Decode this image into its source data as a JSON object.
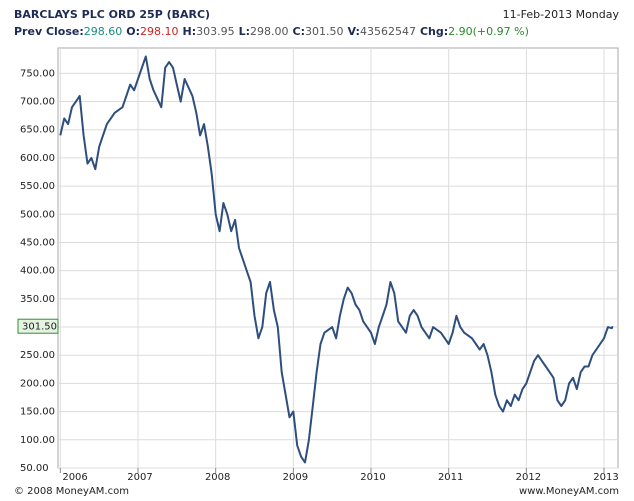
{
  "header": {
    "title": "BARCLAYS PLC ORD 25P (BARC)",
    "date": "11-Feb-2013 Monday",
    "fields": [
      {
        "label": "Prev Close:",
        "value": "298.60",
        "color": "#1a8a7a"
      },
      {
        "label": "O:",
        "value": "298.10",
        "color": "#cc2222"
      },
      {
        "label": "H:",
        "value": "303.95",
        "color": "#555555"
      },
      {
        "label": "L:",
        "value": "298.00",
        "color": "#555555"
      },
      {
        "label": "C:",
        "value": "301.50",
        "color": "#555555"
      },
      {
        "label": "V:",
        "value": "43562547",
        "color": "#555555"
      },
      {
        "label": "Chg:",
        "value": "2.90(+0.97 %)",
        "color": "#2a8a2a"
      }
    ]
  },
  "chart_data": {
    "type": "line",
    "x": [
      2006.0,
      2006.05,
      2006.1,
      2006.15,
      2006.2,
      2006.25,
      2006.3,
      2006.35,
      2006.4,
      2006.45,
      2006.5,
      2006.55,
      2006.6,
      2006.7,
      2006.8,
      2006.9,
      2006.95,
      2007.0,
      2007.05,
      2007.1,
      2007.15,
      2007.2,
      2007.3,
      2007.35,
      2007.4,
      2007.45,
      2007.5,
      2007.55,
      2007.6,
      2007.7,
      2007.75,
      2007.8,
      2007.85,
      2007.9,
      2007.95,
      2008.0,
      2008.05,
      2008.1,
      2008.15,
      2008.2,
      2008.25,
      2008.3,
      2008.35,
      2008.4,
      2008.45,
      2008.5,
      2008.55,
      2008.6,
      2008.65,
      2008.7,
      2008.75,
      2008.8,
      2008.85,
      2008.9,
      2008.95,
      2009.0,
      2009.05,
      2009.1,
      2009.15,
      2009.2,
      2009.25,
      2009.3,
      2009.35,
      2009.4,
      2009.5,
      2009.55,
      2009.6,
      2009.65,
      2009.7,
      2009.75,
      2009.8,
      2009.85,
      2009.9,
      2010.0,
      2010.05,
      2010.1,
      2010.15,
      2010.2,
      2010.25,
      2010.3,
      2010.35,
      2010.4,
      2010.45,
      2010.5,
      2010.55,
      2010.6,
      2010.65,
      2010.7,
      2010.75,
      2010.8,
      2010.9,
      2011.0,
      2011.05,
      2011.1,
      2011.15,
      2011.2,
      2011.3,
      2011.35,
      2011.4,
      2011.45,
      2011.5,
      2011.55,
      2011.6,
      2011.65,
      2011.7,
      2011.75,
      2011.8,
      2011.85,
      2011.9,
      2011.95,
      2012.0,
      2012.05,
      2012.1,
      2012.15,
      2012.2,
      2012.25,
      2012.3,
      2012.35,
      2012.4,
      2012.45,
      2012.5,
      2012.55,
      2012.6,
      2012.65,
      2012.7,
      2012.75,
      2012.8,
      2012.85,
      2012.9,
      2012.95,
      2013.0,
      2013.05,
      2013.1,
      2013.11
    ],
    "series": [
      {
        "color": "#2e4e7e",
        "values": [
          640,
          670,
          660,
          690,
          700,
          710,
          640,
          590,
          600,
          580,
          620,
          640,
          660,
          680,
          690,
          730,
          720,
          740,
          760,
          780,
          740,
          720,
          690,
          760,
          770,
          760,
          730,
          700,
          740,
          710,
          680,
          640,
          660,
          620,
          570,
          500,
          470,
          520,
          500,
          470,
          490,
          440,
          420,
          400,
          380,
          320,
          280,
          300,
          360,
          380,
          330,
          300,
          220,
          180,
          140,
          150,
          90,
          70,
          60,
          100,
          160,
          220,
          270,
          290,
          300,
          280,
          320,
          350,
          370,
          360,
          340,
          330,
          310,
          290,
          270,
          300,
          320,
          340,
          380,
          360,
          310,
          300,
          290,
          320,
          330,
          320,
          300,
          290,
          280,
          300,
          290,
          270,
          290,
          320,
          300,
          290,
          280,
          270,
          260,
          270,
          250,
          220,
          180,
          160,
          150,
          170,
          160,
          180,
          170,
          190,
          200,
          220,
          240,
          250,
          240,
          230,
          220,
          210,
          170,
          160,
          170,
          200,
          210,
          190,
          220,
          230,
          230,
          250,
          260,
          270,
          280,
          300,
          298,
          301.5
        ]
      }
    ],
    "last": {
      "value": 301.5,
      "label": "301.50"
    },
    "xlim": [
      2005.97,
      2013.18
    ],
    "xticks": [
      2006,
      2007,
      2008,
      2009,
      2010,
      2011,
      2012,
      2013
    ],
    "ylim": [
      50,
      795
    ],
    "yticks": [
      {
        "value": 50,
        "label": "50.00"
      },
      {
        "value": 100,
        "label": "100.00"
      },
      {
        "value": 150,
        "label": "150.00"
      },
      {
        "value": 200,
        "label": "200.00"
      },
      {
        "value": 250,
        "label": "250.00"
      },
      {
        "value": 300,
        "label": "300.00"
      },
      {
        "value": 350,
        "label": "350.00"
      },
      {
        "value": 400,
        "label": "400.00"
      },
      {
        "value": 450,
        "label": "450.00"
      },
      {
        "value": 500,
        "label": "500.00"
      },
      {
        "value": 550,
        "label": "550.00"
      },
      {
        "value": 600,
        "label": "600.00"
      },
      {
        "value": 650,
        "label": "650.00"
      },
      {
        "value": 700,
        "label": "700.00"
      },
      {
        "value": 750,
        "label": "750.00"
      }
    ],
    "grid": true
  },
  "footer": {
    "left": "© 2008 MoneyAM.com",
    "right": "www.MoneyAM.com"
  }
}
